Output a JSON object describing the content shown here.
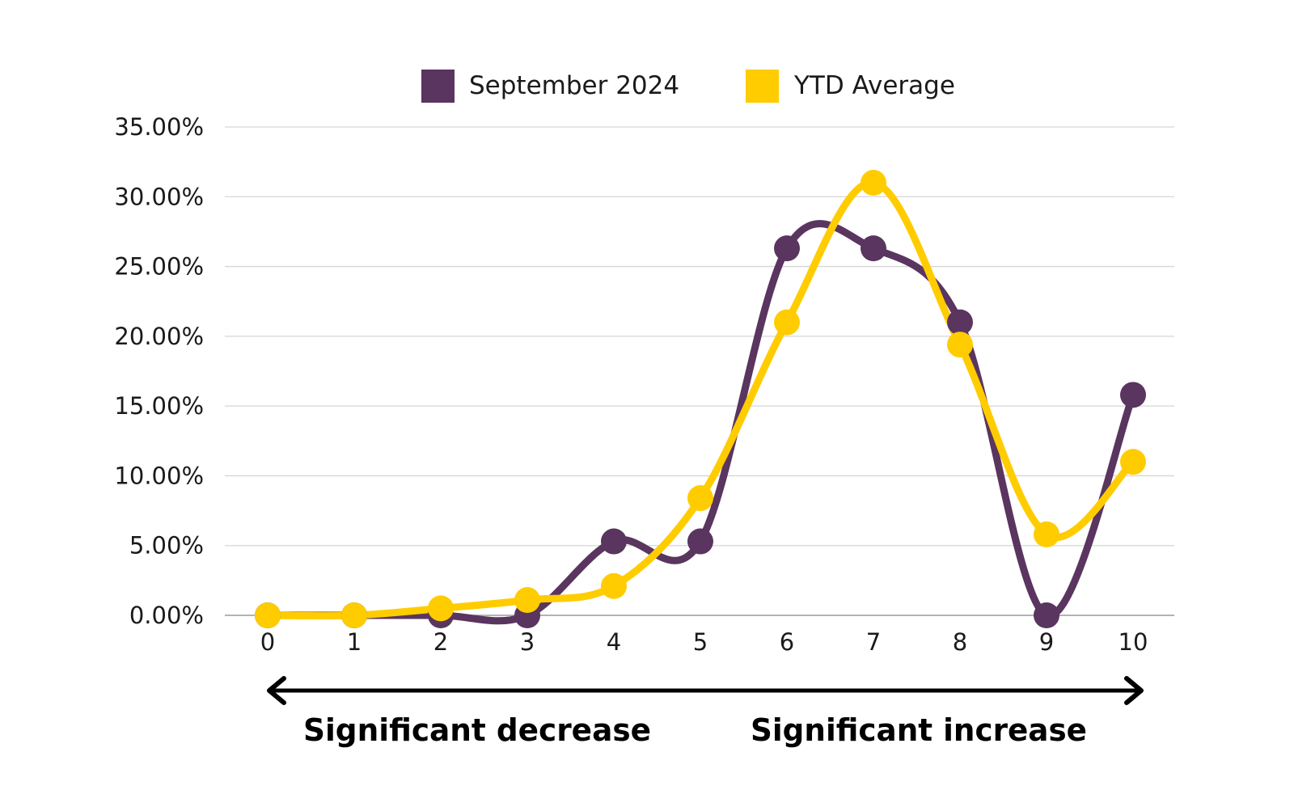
{
  "chart_data": {
    "type": "line",
    "smooth": true,
    "x": [
      0,
      1,
      2,
      3,
      4,
      5,
      6,
      7,
      8,
      9,
      10
    ],
    "x_tick_labels": [
      "0",
      "1",
      "2",
      "3",
      "4",
      "5",
      "6",
      "7",
      "8",
      "9",
      "10"
    ],
    "y_tick_labels": [
      "0.00%",
      "5.00%",
      "10.00%",
      "15.00%",
      "20.00%",
      "25.00%",
      "30.00%",
      "35.00%"
    ],
    "y_ticks": [
      0,
      5,
      10,
      15,
      20,
      25,
      30,
      35
    ],
    "ylim": [
      0,
      35
    ],
    "y_unit": "percent",
    "grid": "horizontal",
    "legend_position": "top",
    "series": [
      {
        "name": "September 2024",
        "color": "#59355F",
        "values": [
          0.0,
          0.0,
          0.0,
          0.0,
          5.3,
          5.3,
          26.3,
          26.3,
          21.0,
          0.0,
          15.8
        ]
      },
      {
        "name": "YTD Average",
        "color": "#FFCC00",
        "values": [
          0.0,
          0.0,
          0.5,
          1.1,
          2.1,
          8.4,
          21.0,
          31.0,
          19.4,
          5.8,
          11.0
        ]
      }
    ],
    "annotations": {
      "left": "Significant decrease",
      "right": "Significant increase",
      "arrow": "double-headed"
    }
  }
}
